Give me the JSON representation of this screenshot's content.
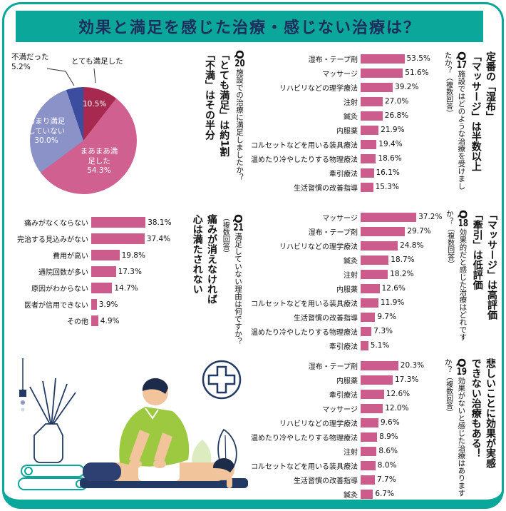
{
  "page": {
    "title": "効果と満足を感じた治療・感じない治療は？"
  },
  "colors": {
    "teal": "#0aa79a",
    "navy_text": "#1e2e5c",
    "bar": "#cb5c8c",
    "pie_very_satisfied": "#a8294f",
    "pie_somewhat_satisfied": "#d0608f",
    "pie_not_very_satisfied": "#8a92c8",
    "pie_dissatisfied": "#3c4c9f",
    "illustration_green": "#9cc93f"
  },
  "chart_data": [
    {
      "id": "Q20",
      "type": "pie",
      "q": {
        "prefix": "Q",
        "number": "20"
      },
      "question": "施設での治療に満足しましたか？",
      "headline": [
        "「とても満足」は約1割",
        "「不満」はその半分"
      ],
      "segments": [
        {
          "label": "とても満足した",
          "value": 10.5,
          "color": "#a8294f"
        },
        {
          "label": "まあまあ満足した",
          "value": 54.3,
          "color": "#d0608f"
        },
        {
          "label": "あまり満足していない",
          "value": 30.0,
          "color": "#8a92c8"
        },
        {
          "label": "不満だった",
          "value": 5.2,
          "color": "#3c4c9f"
        }
      ]
    },
    {
      "id": "Q17",
      "type": "bar",
      "unit": "%",
      "q": {
        "prefix": "Q",
        "number": "17"
      },
      "question": "施設ではどのような治療を受けましたか？",
      "note": "（複数回答）",
      "headline": [
        "定番の「湿布」",
        "「マッサージ」は半数以上"
      ],
      "items": [
        {
          "label": "湿布・テープ剤",
          "value": 53.5
        },
        {
          "label": "マッサージ",
          "value": 51.6
        },
        {
          "label": "リハビリなどの理学療法",
          "value": 39.2
        },
        {
          "label": "注射",
          "value": 27.0
        },
        {
          "label": "鍼灸",
          "value": 26.8
        },
        {
          "label": "内服薬",
          "value": 21.9
        },
        {
          "label": "コルセットなどを用いる装具療法",
          "value": 19.4
        },
        {
          "label": "温めたり冷やしたりする物理療法",
          "value": 18.6
        },
        {
          "label": "牽引療法",
          "value": 16.1
        },
        {
          "label": "生活習慣の改善指導",
          "value": 15.3
        }
      ]
    },
    {
      "id": "Q21",
      "type": "bar",
      "unit": "%",
      "q": {
        "prefix": "Q",
        "number": "21"
      },
      "question": "満足していない理由は何ですか？",
      "note": "（複数回答）",
      "headline": [
        "痛みが消えなければ",
        "心は満たされない"
      ],
      "items": [
        {
          "label": "痛みがなくならない",
          "value": 38.1
        },
        {
          "label": "完治する見込みがない",
          "value": 37.4
        },
        {
          "label": "費用が高い",
          "value": 19.8
        },
        {
          "label": "通院回数が多い",
          "value": 17.3
        },
        {
          "label": "原因がわからない",
          "value": 14.7
        },
        {
          "label": "医者が信用できない",
          "value": 3.9
        },
        {
          "label": "その他",
          "value": 4.9
        }
      ]
    },
    {
      "id": "Q18",
      "type": "bar",
      "unit": "%",
      "q": {
        "prefix": "Q",
        "number": "18"
      },
      "question": "効果的だと感じた治療はどれですか？",
      "note": "（複数回答）",
      "headline": [
        "「マッサージ」は高評価",
        "「牽引」は低評価"
      ],
      "items": [
        {
          "label": "マッサージ",
          "value": 37.2
        },
        {
          "label": "湿布・テープ剤",
          "value": 29.7
        },
        {
          "label": "リハビリなどの理学療法",
          "value": 24.8
        },
        {
          "label": "鍼灸",
          "value": 18.7
        },
        {
          "label": "注射",
          "value": 18.2
        },
        {
          "label": "内服薬",
          "value": 12.6
        },
        {
          "label": "コルセットなどを用いる装具療法",
          "value": 11.9
        },
        {
          "label": "生活習慣の改善指導",
          "value": 9.7
        },
        {
          "label": "温めたり冷やしたりする物理療法",
          "value": 7.3
        },
        {
          "label": "牽引療法",
          "value": 5.1
        }
      ]
    },
    {
      "id": "Q19",
      "type": "bar",
      "unit": "%",
      "q": {
        "prefix": "Q",
        "number": "19"
      },
      "question": "効果がないと感じた治療はありますか？",
      "note": "（複数回答）",
      "headline": [
        "悲しいことに効果が実感",
        "できない治療もある！"
      ],
      "items": [
        {
          "label": "湿布・テープ剤",
          "value": 20.3
        },
        {
          "label": "内服薬",
          "value": 17.3
        },
        {
          "label": "牽引療法",
          "value": 12.6
        },
        {
          "label": "マッサージ",
          "value": 12.0
        },
        {
          "label": "リハビリなどの理学療法",
          "value": 9.6
        },
        {
          "label": "温めたり冷やしたりする物理療法",
          "value": 8.9
        },
        {
          "label": "注射",
          "value": 8.6
        },
        {
          "label": "コルセットなどを用いる装具療法",
          "value": 8.0
        },
        {
          "label": "生活習慣の改善指導",
          "value": 7.7
        },
        {
          "label": "鍼灸",
          "value": 6.7
        }
      ]
    }
  ]
}
